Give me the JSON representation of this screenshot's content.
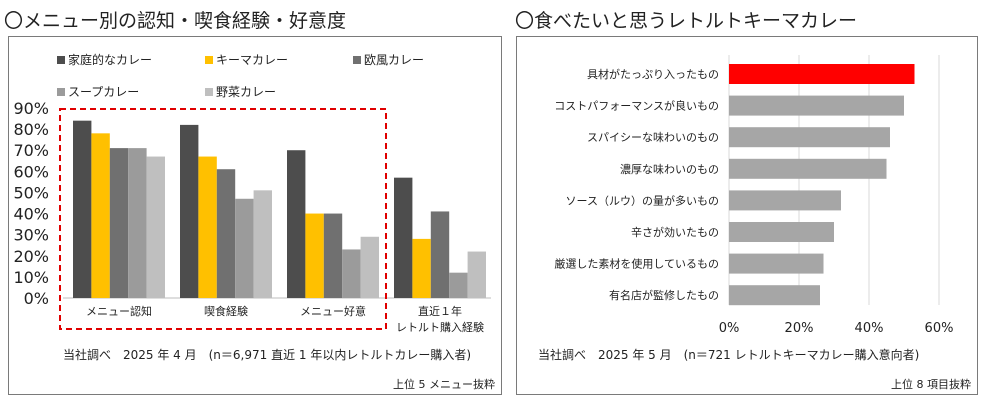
{
  "left": {
    "title": "〇メニュー別の認知・喫食経験・好意度",
    "note": "当社調べ　2025 年 4 月　(n＝6,971 直近 1 年以内レトルトカレー購入者)",
    "footer": "上位 5 メニュー抜粋"
  },
  "right": {
    "title": "〇食べたいと思うレトルトキーマカレー",
    "note": "当社調べ　2025 年 5 月　(n＝721 レトルトキーマカレー購入意向者)",
    "footer": "上位 8 項目抜粋"
  },
  "chart_data": [
    {
      "type": "bar",
      "orientation": "vertical",
      "categories": [
        "メニュー認知",
        "喫食経験",
        "メニュー好意",
        "直近１年\nレトルト購入経験"
      ],
      "series": [
        {
          "name": "家庭的なカレー",
          "color": "#4d4d4d",
          "values": [
            84,
            82,
            70,
            57
          ]
        },
        {
          "name": "キーマカレー",
          "color": "#ffc000",
          "values": [
            78,
            67,
            40,
            28
          ]
        },
        {
          "name": "欧風カレー",
          "color": "#707070",
          "values": [
            71,
            61,
            40,
            41
          ]
        },
        {
          "name": "スープカレー",
          "color": "#9b9b9b",
          "values": [
            71,
            47,
            23,
            12
          ]
        },
        {
          "name": "野菜カレー",
          "color": "#bfbfbf",
          "values": [
            67,
            51,
            29,
            22
          ]
        }
      ],
      "yticks": [
        "0%",
        "10%",
        "20%",
        "30%",
        "40%",
        "50%",
        "60%",
        "70%",
        "80%",
        "90%"
      ],
      "ylim": [
        0,
        90
      ],
      "highlight": {
        "categories": [
          0,
          1,
          2
        ],
        "style": "dashed red box",
        "color": "#e00000"
      }
    },
    {
      "type": "bar",
      "orientation": "horizontal",
      "categories": [
        "具材がたっぷり入ったもの",
        "コストパフォーマンスが良いもの",
        "スパイシーな味わいのもの",
        "濃厚な味わいのもの",
        "ソース（ルウ）の量が多いもの",
        "辛さが効いたもの",
        "厳選した素材を使用しているもの",
        "有名店が監修したもの"
      ],
      "values": [
        53,
        50,
        46,
        45,
        32,
        30,
        27,
        26
      ],
      "colors": {
        "highlight": "#ff0000",
        "default": "#a6a6a6"
      },
      "highlight_index": 0,
      "xticks": [
        "0%",
        "20%",
        "40%",
        "60%"
      ],
      "xlim": [
        0,
        60
      ],
      "grid": "vertical"
    }
  ]
}
